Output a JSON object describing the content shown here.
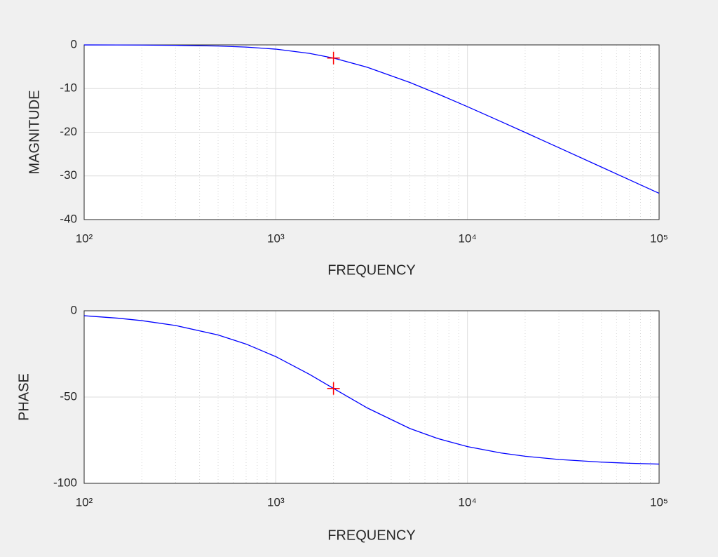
{
  "chart_data": [
    {
      "type": "line",
      "xlabel": "FREQUENCY",
      "ylabel": "MAGNITUDE",
      "xscale": "log",
      "grid": true,
      "xlim": [
        100,
        100000
      ],
      "ylim": [
        -40,
        0
      ],
      "xticks": [
        {
          "value": 100,
          "label": "10²"
        },
        {
          "value": 1000,
          "label": "10³"
        },
        {
          "value": 10000,
          "label": "10⁴"
        },
        {
          "value": 100000,
          "label": "10⁵"
        }
      ],
      "xminorticks": [
        200,
        300,
        400,
        500,
        600,
        700,
        800,
        900,
        2000,
        3000,
        4000,
        5000,
        6000,
        7000,
        8000,
        9000,
        20000,
        30000,
        40000,
        50000,
        60000,
        70000,
        80000,
        90000
      ],
      "yticks": [
        0,
        -10,
        -20,
        -30,
        -40
      ],
      "series": [
        {
          "color": "#0000ff",
          "marker": "none",
          "x": [
            100,
            150,
            200,
            300,
            500,
            700,
            1000,
            1500,
            2000,
            3000,
            5000,
            7000,
            10000,
            15000,
            20000,
            30000,
            50000,
            70000,
            100000
          ],
          "values": [
            -0.01,
            -0.02,
            -0.04,
            -0.1,
            -0.26,
            -0.5,
            -0.97,
            -1.94,
            -3.01,
            -5.12,
            -8.6,
            -11.22,
            -14.15,
            -17.58,
            -20.04,
            -23.54,
            -27.97,
            -30.89,
            -33.98
          ]
        },
        {
          "color": "#ff0000",
          "marker": "+",
          "x": [
            2000
          ],
          "values": [
            -3.01
          ]
        }
      ]
    },
    {
      "type": "line",
      "xlabel": "FREQUENCY",
      "ylabel": "PHASE",
      "xscale": "log",
      "grid": true,
      "xlim": [
        100,
        100000
      ],
      "ylim": [
        -100,
        0
      ],
      "xticks": [
        {
          "value": 100,
          "label": "10²"
        },
        {
          "value": 1000,
          "label": "10³"
        },
        {
          "value": 10000,
          "label": "10⁴"
        },
        {
          "value": 100000,
          "label": "10⁵"
        }
      ],
      "xminorticks": [
        200,
        300,
        400,
        500,
        600,
        700,
        800,
        900,
        2000,
        3000,
        4000,
        5000,
        6000,
        7000,
        8000,
        9000,
        20000,
        30000,
        40000,
        50000,
        60000,
        70000,
        80000,
        90000
      ],
      "yticks": [
        0,
        -50,
        -100
      ],
      "series": [
        {
          "color": "#0000ff",
          "marker": "none",
          "x": [
            100,
            150,
            200,
            300,
            500,
            700,
            1000,
            1500,
            2000,
            3000,
            5000,
            7000,
            10000,
            15000,
            20000,
            30000,
            50000,
            70000,
            100000
          ],
          "values": [
            -2.86,
            -4.29,
            -5.71,
            -8.53,
            -14.04,
            -19.29,
            -26.57,
            -36.87,
            -45,
            -56.31,
            -68.2,
            -74.05,
            -78.69,
            -82.41,
            -84.29,
            -86.19,
            -87.71,
            -88.36,
            -88.85
          ]
        },
        {
          "color": "#ff0000",
          "marker": "+",
          "x": [
            2000
          ],
          "values": [
            -45
          ]
        }
      ]
    }
  ]
}
